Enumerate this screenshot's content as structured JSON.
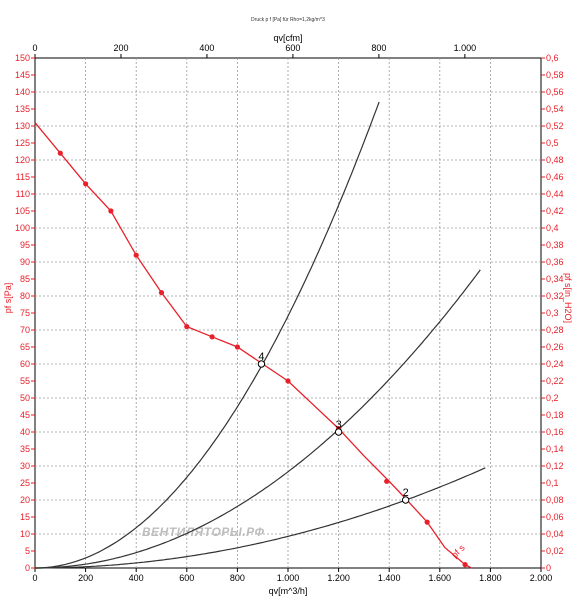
{
  "chart_data": {
    "type": "line",
    "title": "Druck p f [Pa] für Rho=1,2kg/m^3",
    "watermark": "ВЕНТИЛЯТОРЫ.РФ",
    "x_bottom": {
      "label": "qv[m^3/h]",
      "range": [
        0,
        2000
      ],
      "ticks": [
        0,
        200,
        400,
        600,
        800,
        1000,
        1200,
        1400,
        1600,
        1800,
        2000
      ],
      "tick_labels": [
        "0",
        "200",
        "400",
        "600",
        "800",
        "1.000",
        "1.200",
        "1.400",
        "1.600",
        "1.800",
        "2.000"
      ]
    },
    "x_top": {
      "label": "qv[cfm]",
      "range": [
        0,
        1177.1
      ],
      "ticks": [
        0,
        200,
        400,
        600,
        800,
        1000
      ],
      "tick_labels": [
        "0",
        "200",
        "400",
        "600",
        "800",
        "1.000"
      ]
    },
    "y_left": {
      "label": "pf s[Pa]",
      "range": [
        0,
        150
      ],
      "ticks": [
        0,
        5,
        10,
        15,
        20,
        25,
        30,
        35,
        40,
        45,
        50,
        55,
        60,
        65,
        70,
        75,
        80,
        85,
        90,
        95,
        100,
        105,
        110,
        115,
        120,
        125,
        130,
        135,
        140,
        145,
        150
      ],
      "tick_labels": [
        "0",
        "5",
        "10",
        "15",
        "20",
        "25",
        "30",
        "35",
        "40",
        "45",
        "50",
        "55",
        "60",
        "65",
        "70",
        "75",
        "80",
        "85",
        "90",
        "95",
        "100",
        "105",
        "110",
        "115",
        "120",
        "125",
        "130",
        "135",
        "140",
        "145",
        "150"
      ]
    },
    "y_right": {
      "label": "pf s[in_H2O]",
      "range": [
        0,
        0.6
      ],
      "ticks": [
        0,
        0.02,
        0.04,
        0.06,
        0.08,
        0.1,
        0.12,
        0.14,
        0.16,
        0.18,
        0.2,
        0.22,
        0.24,
        0.26,
        0.28,
        0.3,
        0.32,
        0.34,
        0.36,
        0.38,
        0.4,
        0.42,
        0.44,
        0.46,
        0.48,
        0.5,
        0.52,
        0.54,
        0.56,
        0.58,
        0.6
      ],
      "tick_labels": [
        "0",
        "0,02",
        "0,04",
        "0,06",
        "0,08",
        "0,1",
        "0,12",
        "0,14",
        "0,16",
        "0,18",
        "0,2",
        "0,22",
        "0,24",
        "0,26",
        "0,28",
        "0,3",
        "0,32",
        "0,34",
        "0,36",
        "0,38",
        "0,4",
        "0,42",
        "0,44",
        "0,46",
        "0,48",
        "0,5",
        "0,52",
        "0,54",
        "0,56",
        "0,58",
        "0,6"
      ]
    },
    "grid": true,
    "colors": {
      "fan": "#e8202a",
      "system": "#333333",
      "axis": "#000000"
    },
    "fan_curve": {
      "label": "pf s",
      "x": [
        0,
        100,
        200,
        300,
        400,
        500,
        600,
        700,
        800,
        900,
        1000,
        1100,
        1200,
        1300,
        1400,
        1470,
        1550,
        1620,
        1700,
        1725
      ],
      "y": [
        131,
        122,
        113,
        105,
        92,
        81,
        71,
        68,
        65,
        60,
        55,
        48,
        41,
        33,
        25.5,
        20,
        13.5,
        6,
        1,
        0
      ],
      "markers_x": [
        100,
        200,
        300,
        400,
        500,
        600,
        700,
        800,
        900,
        1000,
        1200,
        1390,
        1550,
        1700
      ],
      "markers_y": [
        122,
        113,
        105,
        92,
        81,
        71,
        68,
        65,
        60,
        55,
        41,
        25.5,
        13.5,
        1
      ]
    },
    "system_curves": [
      {
        "label": "4",
        "k": 7.41e-05,
        "x_end": 1360
      },
      {
        "label": "3",
        "k": 2.83e-05,
        "x_end": 1765
      },
      {
        "label": "2",
        "k": 9.3e-06,
        "x_end": 1780
      }
    ],
    "operating_points": [
      {
        "label": "4",
        "x": 895,
        "y": 60
      },
      {
        "label": "3",
        "x": 1200,
        "y": 40
      },
      {
        "label": "2",
        "x": 1465,
        "y": 20
      }
    ]
  }
}
